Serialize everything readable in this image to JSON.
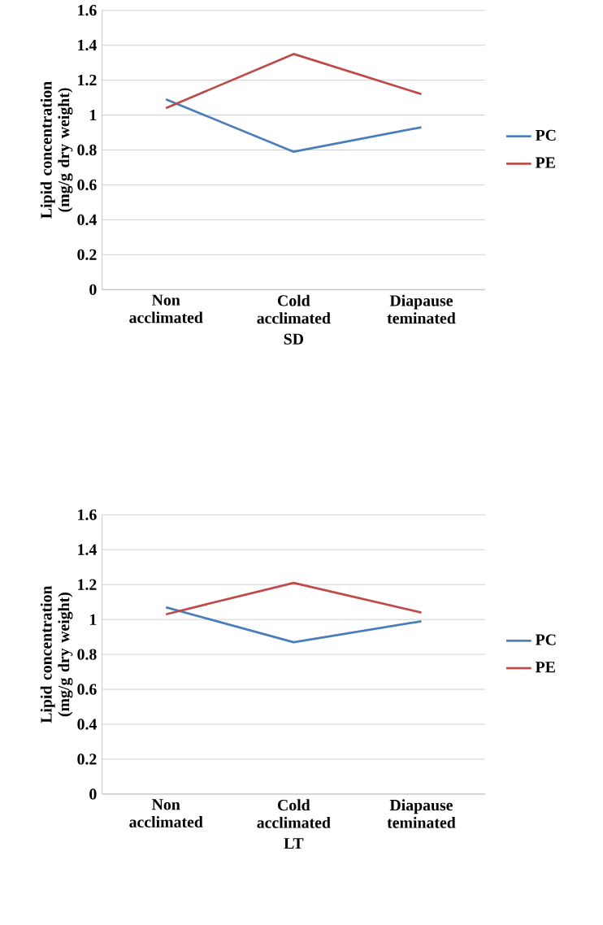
{
  "chart_data": [
    {
      "type": "line",
      "categories": [
        "Non acclimated",
        "Cold acclimated",
        "Diapause teminated"
      ],
      "xlabel": "SD",
      "ylabel": "Lipid concentration (mg/g dry weight)",
      "ylim": [
        0,
        1.6
      ],
      "yticks": [
        0,
        0.2,
        0.4,
        0.6,
        0.8,
        1,
        1.2,
        1.4,
        1.6
      ],
      "grid": "y",
      "legend": "right",
      "marker": "none",
      "series": [
        {
          "name": "PC",
          "color": "#4a7ebb",
          "values": [
            1.09,
            0.79,
            0.93
          ]
        },
        {
          "name": "PE",
          "color": "#be4b48",
          "values": [
            1.04,
            1.35,
            1.12
          ]
        }
      ]
    },
    {
      "type": "line",
      "categories": [
        "Non acclimated",
        "Cold acclimated",
        "Diapause teminated"
      ],
      "xlabel": "LT",
      "ylabel": "Lipid concentration (mg/g dry weight)",
      "ylim": [
        0,
        1.6
      ],
      "yticks": [
        0,
        0.2,
        0.4,
        0.6,
        0.8,
        1,
        1.2,
        1.4,
        1.6
      ],
      "grid": "y",
      "legend": "right",
      "marker": "none",
      "series": [
        {
          "name": "PC",
          "color": "#4a7ebb",
          "values": [
            1.07,
            0.87,
            0.99
          ]
        },
        {
          "name": "PE",
          "color": "#be4b48",
          "values": [
            1.03,
            1.21,
            1.04
          ]
        }
      ]
    }
  ]
}
